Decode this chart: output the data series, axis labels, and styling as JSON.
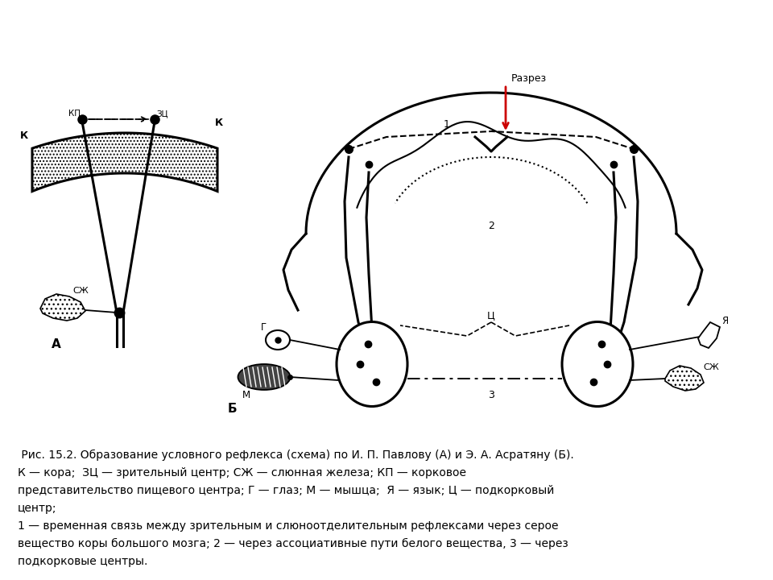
{
  "caption_line1": " Рис. 15.2. Образование условного рефлекса (схема) по И. П. Павлову (А) и Э. А. Асратяну (Б).",
  "caption_line2": "К — кора;  ЗЦ — зрительный центр; СЖ — слюнная железа; КП — корковое",
  "caption_line3": "представительство пищевого центра; Г — глаз; М — мышца;  Я — язык; Ц — подкорковый",
  "caption_line4": "центр;",
  "caption_line5": "1 — временная связь между зрительным и слюноотделительным рефлексами через серое",
  "caption_line6": "вещество коры большого мозга; 2 — через ассоциативные пути белого вещества, 3 — через",
  "caption_line7": "подкорковые центры.",
  "bg_color": "#ffffff",
  "black": "#000000",
  "red": "#cc0000"
}
